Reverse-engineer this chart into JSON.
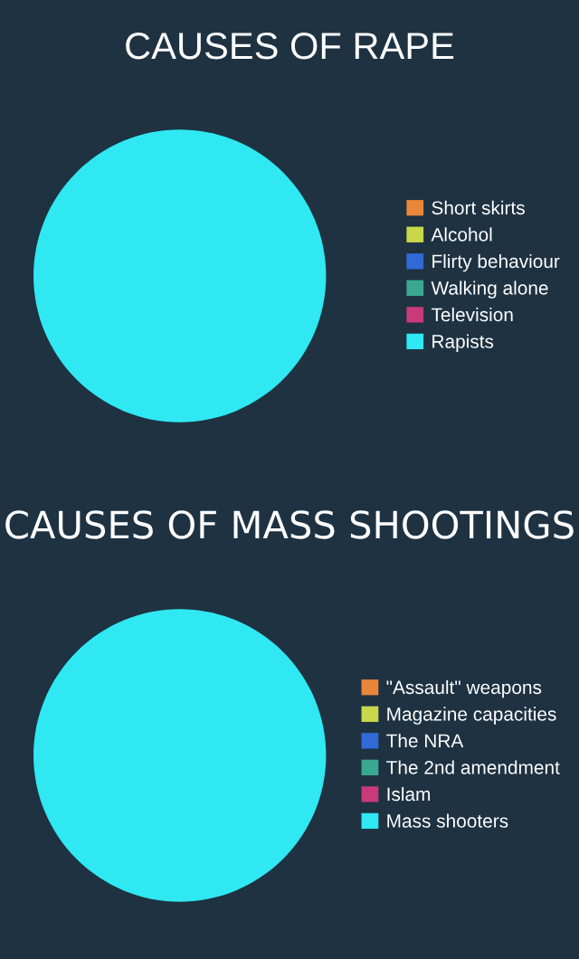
{
  "chart_data": [
    {
      "type": "pie",
      "title": "CAUSES OF RAPE",
      "categories": [
        "Short skirts",
        "Alcohol",
        "Flirty behaviour",
        "Walking alone",
        "Television",
        "Rapists"
      ],
      "values": [
        0,
        0,
        0,
        0,
        0,
        100
      ],
      "colors": [
        "#e8863a",
        "#c8d84a",
        "#2f6ad8",
        "#3aa890",
        "#c83a7a",
        "#2fe8f2"
      ],
      "legend": "right"
    },
    {
      "type": "pie",
      "title": "CAUSES OF MASS SHOOTINGS",
      "categories": [
        "\"Assault\" weapons",
        "Magazine capacities",
        "The NRA",
        "The 2nd amendment",
        "Islam",
        "Mass shooters"
      ],
      "values": [
        0,
        0,
        0,
        0,
        0,
        100
      ],
      "colors": [
        "#e8863a",
        "#c8d84a",
        "#2f6ad8",
        "#3aa890",
        "#c83a7a",
        "#2fe8f2"
      ],
      "legend": "right"
    }
  ]
}
